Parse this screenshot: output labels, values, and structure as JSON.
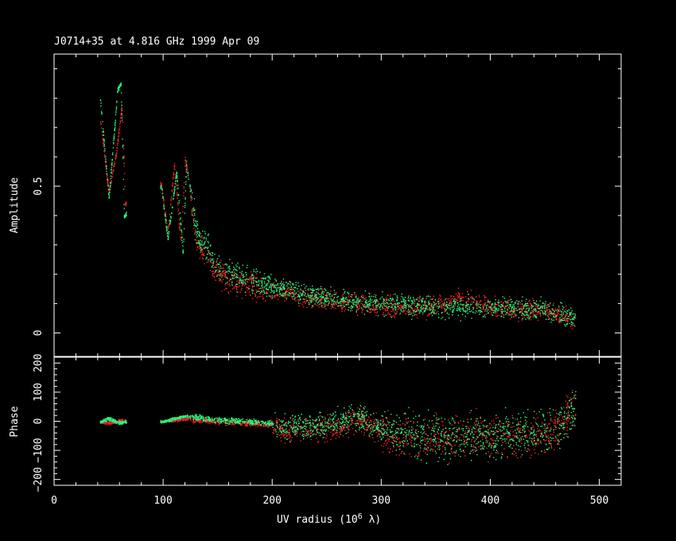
{
  "colors": {
    "background": "#000000",
    "frame": "#ffffff",
    "series_red": "#ff2020",
    "series_green": "#20ff80"
  },
  "chart_data": [
    {
      "type": "scatter",
      "title": "J0714+35 at 4.816 GHz 1999 Apr 09",
      "ylabel": "Amplitude",
      "xlim": [
        0,
        520
      ],
      "ylim": [
        -0.08,
        0.95
      ],
      "yticks_labeled": [
        {
          "value": 0,
          "label": "0"
        },
        {
          "value": 0.5,
          "label": "0.5"
        }
      ],
      "x_major_step": 100,
      "x_minor_step": 20,
      "y_minor_step": 0.1,
      "grid": false,
      "series": [
        {
          "color": "red",
          "trend": [
            [
              42,
              0.73
            ],
            [
              50,
              0.48
            ],
            [
              57,
              0.62
            ],
            [
              62,
              0.78
            ],
            [
              65,
              0.44
            ],
            [
              98,
              0.51
            ],
            [
              104,
              0.34
            ],
            [
              110,
              0.58
            ],
            [
              116,
              0.3
            ],
            [
              120,
              0.6
            ],
            [
              130,
              0.32
            ],
            [
              150,
              0.2
            ],
            [
              180,
              0.16
            ],
            [
              210,
              0.14
            ],
            [
              250,
              0.11
            ],
            [
              300,
              0.09
            ],
            [
              350,
              0.09
            ],
            [
              370,
              0.12
            ],
            [
              400,
              0.09
            ],
            [
              450,
              0.08
            ],
            [
              478,
              0.04
            ]
          ]
        },
        {
          "color": "green",
          "trend": [
            [
              42,
              0.8
            ],
            [
              50,
              0.46
            ],
            [
              58,
              0.83
            ],
            [
              61,
              0.85
            ],
            [
              64,
              0.4
            ],
            [
              98,
              0.5
            ],
            [
              104,
              0.32
            ],
            [
              112,
              0.55
            ],
            [
              118,
              0.27
            ],
            [
              121,
              0.58
            ],
            [
              130,
              0.35
            ],
            [
              150,
              0.22
            ],
            [
              180,
              0.18
            ],
            [
              210,
              0.15
            ],
            [
              250,
              0.12
            ],
            [
              300,
              0.1
            ],
            [
              350,
              0.09
            ],
            [
              400,
              0.09
            ],
            [
              450,
              0.08
            ],
            [
              478,
              0.05
            ]
          ]
        }
      ]
    },
    {
      "type": "scatter",
      "xlabel": "UV radius  (10",
      "xlabel_sup": "6",
      "xlabel_end": " λ)",
      "ylabel": "Phase",
      "xlim": [
        0,
        520
      ],
      "ylim": [
        -220,
        220
      ],
      "xticks_labeled": [
        {
          "value": 0,
          "label": "0"
        },
        {
          "value": 100,
          "label": "100"
        },
        {
          "value": 200,
          "label": "200"
        },
        {
          "value": 300,
          "label": "300"
        },
        {
          "value": 400,
          "label": "400"
        },
        {
          "value": 500,
          "label": "500"
        }
      ],
      "yticks_labeled": [
        {
          "value": -200,
          "label": "−200"
        },
        {
          "value": -100,
          "label": "−100"
        },
        {
          "value": 0,
          "label": "0"
        },
        {
          "value": 100,
          "label": "100"
        },
        {
          "value": 200,
          "label": "200"
        }
      ],
      "x_minor_step": 20,
      "y_minor_step": 20,
      "grid": false,
      "series": [
        {
          "color": "red",
          "trend": [
            [
              42,
              0
            ],
            [
              50,
              -5
            ],
            [
              60,
              5
            ],
            [
              70,
              -10
            ],
            [
              100,
              0
            ],
            [
              120,
              10
            ],
            [
              150,
              0
            ],
            [
              200,
              -10
            ],
            [
              210,
              -30
            ],
            [
              250,
              -20
            ],
            [
              280,
              10
            ],
            [
              300,
              -40
            ],
            [
              330,
              -55
            ],
            [
              370,
              -55
            ],
            [
              400,
              -50
            ],
            [
              430,
              -50
            ],
            [
              460,
              -30
            ],
            [
              478,
              60
            ]
          ]
        },
        {
          "color": "green",
          "trend": [
            [
              42,
              0
            ],
            [
              50,
              10
            ],
            [
              60,
              -5
            ],
            [
              70,
              5
            ],
            [
              100,
              0
            ],
            [
              120,
              20
            ],
            [
              150,
              5
            ],
            [
              200,
              -5
            ],
            [
              210,
              -20
            ],
            [
              250,
              -10
            ],
            [
              280,
              20
            ],
            [
              300,
              -30
            ],
            [
              330,
              -45
            ],
            [
              370,
              -50
            ],
            [
              400,
              -45
            ],
            [
              430,
              -40
            ],
            [
              460,
              -20
            ],
            [
              478,
              40
            ]
          ]
        }
      ]
    }
  ]
}
